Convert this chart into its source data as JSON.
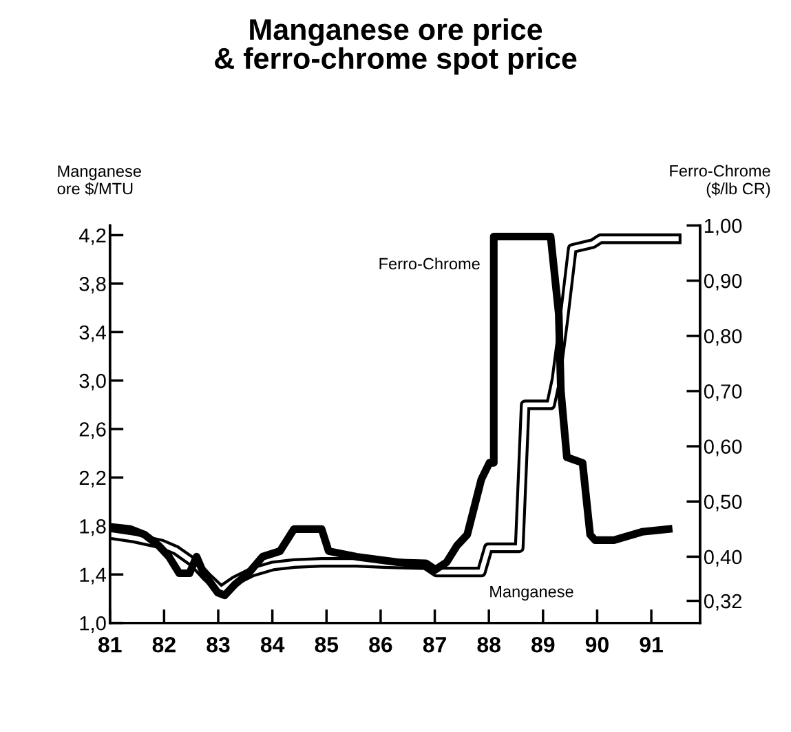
{
  "chart_data": {
    "type": "line",
    "title": "Manganese ore price\n& ferro-chrome spot price",
    "ylabel": "Manganese\nore $/MTU",
    "y2label": "Ferro-Chrome\n($/lb CR)",
    "xlim": [
      1981,
      1991.9
    ],
    "xticks": [
      {
        "value": 1981,
        "label": "81"
      },
      {
        "value": 1982,
        "label": "82"
      },
      {
        "value": 1983,
        "label": "83"
      },
      {
        "value": 1984,
        "label": "84"
      },
      {
        "value": 1985,
        "label": "85"
      },
      {
        "value": 1986,
        "label": "86"
      },
      {
        "value": 1987,
        "label": "87"
      },
      {
        "value": 1988,
        "label": "88"
      },
      {
        "value": 1989,
        "label": "89"
      },
      {
        "value": 1990,
        "label": "90"
      },
      {
        "value": 1991,
        "label": "91"
      }
    ],
    "ylim": [
      1.0,
      4.28
    ],
    "yticks": [
      {
        "value": 1.0,
        "label": "1,0"
      },
      {
        "value": 1.4,
        "label": "1,4"
      },
      {
        "value": 1.8,
        "label": "1,8"
      },
      {
        "value": 2.2,
        "label": "2,2"
      },
      {
        "value": 2.6,
        "label": "2,6"
      },
      {
        "value": 3.0,
        "label": "3,0"
      },
      {
        "value": 3.4,
        "label": "3,4"
      },
      {
        "value": 3.8,
        "label": "3,8"
      },
      {
        "value": 4.2,
        "label": "4,2"
      }
    ],
    "y2lim": [
      0.28,
      1.0
    ],
    "y2ticks": [
      {
        "value": 0.32,
        "label": "0,32"
      },
      {
        "value": 0.4,
        "label": "0,40"
      },
      {
        "value": 0.5,
        "label": "0,50"
      },
      {
        "value": 0.6,
        "label": "0,60"
      },
      {
        "value": 0.7,
        "label": "0,70"
      },
      {
        "value": 0.8,
        "label": "0,80"
      },
      {
        "value": 0.9,
        "label": "0,90"
      },
      {
        "value": 1.0,
        "label": "1,00"
      }
    ],
    "grid": false,
    "legend": false,
    "marker": "none",
    "line_style": "solid",
    "series": [
      {
        "name": "Ferro-Chrome",
        "color": "#000000",
        "axis": "y2",
        "x": [
          1981.0,
          1981.38,
          1981.64,
          1981.9,
          1982.09,
          1982.28,
          1982.47,
          1982.6,
          1982.73,
          1982.99,
          1983.12,
          1983.31,
          1983.56,
          1983.82,
          1984.14,
          1984.4,
          1984.91,
          1985.04,
          1985.55,
          1986.32,
          1986.83,
          1986.99,
          1987.22,
          1987.41,
          1987.6,
          1987.73,
          1987.86,
          1988.01,
          1988.09,
          1988.09,
          1989.14,
          1989.29,
          1989.33,
          1989.44,
          1989.73,
          1989.87,
          1989.96,
          1990.31,
          1990.83,
          1991.32
        ],
        "values": [
          0.454,
          0.45,
          0.44,
          0.42,
          0.4,
          0.37,
          0.37,
          0.4,
          0.37,
          0.335,
          0.33,
          0.35,
          0.37,
          0.4,
          0.41,
          0.45,
          0.45,
          0.41,
          0.4,
          0.39,
          0.385,
          0.375,
          0.39,
          0.42,
          0.44,
          0.49,
          0.54,
          0.57,
          0.57,
          0.98,
          0.98,
          0.84,
          0.7,
          0.58,
          0.57,
          0.44,
          0.43,
          0.43,
          0.445,
          0.45
        ]
      },
      {
        "name": "Manganese",
        "color": "#000000",
        "x": [
          1981.0,
          1981.45,
          1981.96,
          1982.22,
          1982.54,
          1982.79,
          1983.05,
          1983.31,
          1983.63,
          1984.01,
          1984.4,
          1984.91,
          1985.55,
          1986.06,
          1986.83,
          1987.03,
          1987.86,
          1987.99,
          1988.56,
          1988.67,
          1989.14,
          1989.24,
          1989.38,
          1989.54,
          1989.92,
          1990.06,
          1991.46
        ],
        "values": [
          1.73,
          1.7,
          1.65,
          1.6,
          1.5,
          1.38,
          1.27,
          1.35,
          1.42,
          1.47,
          1.49,
          1.5,
          1.5,
          1.49,
          1.48,
          1.42,
          1.42,
          1.62,
          1.62,
          2.8,
          2.8,
          3.01,
          3.49,
          4.09,
          4.13,
          4.17,
          4.17
        ]
      }
    ]
  }
}
